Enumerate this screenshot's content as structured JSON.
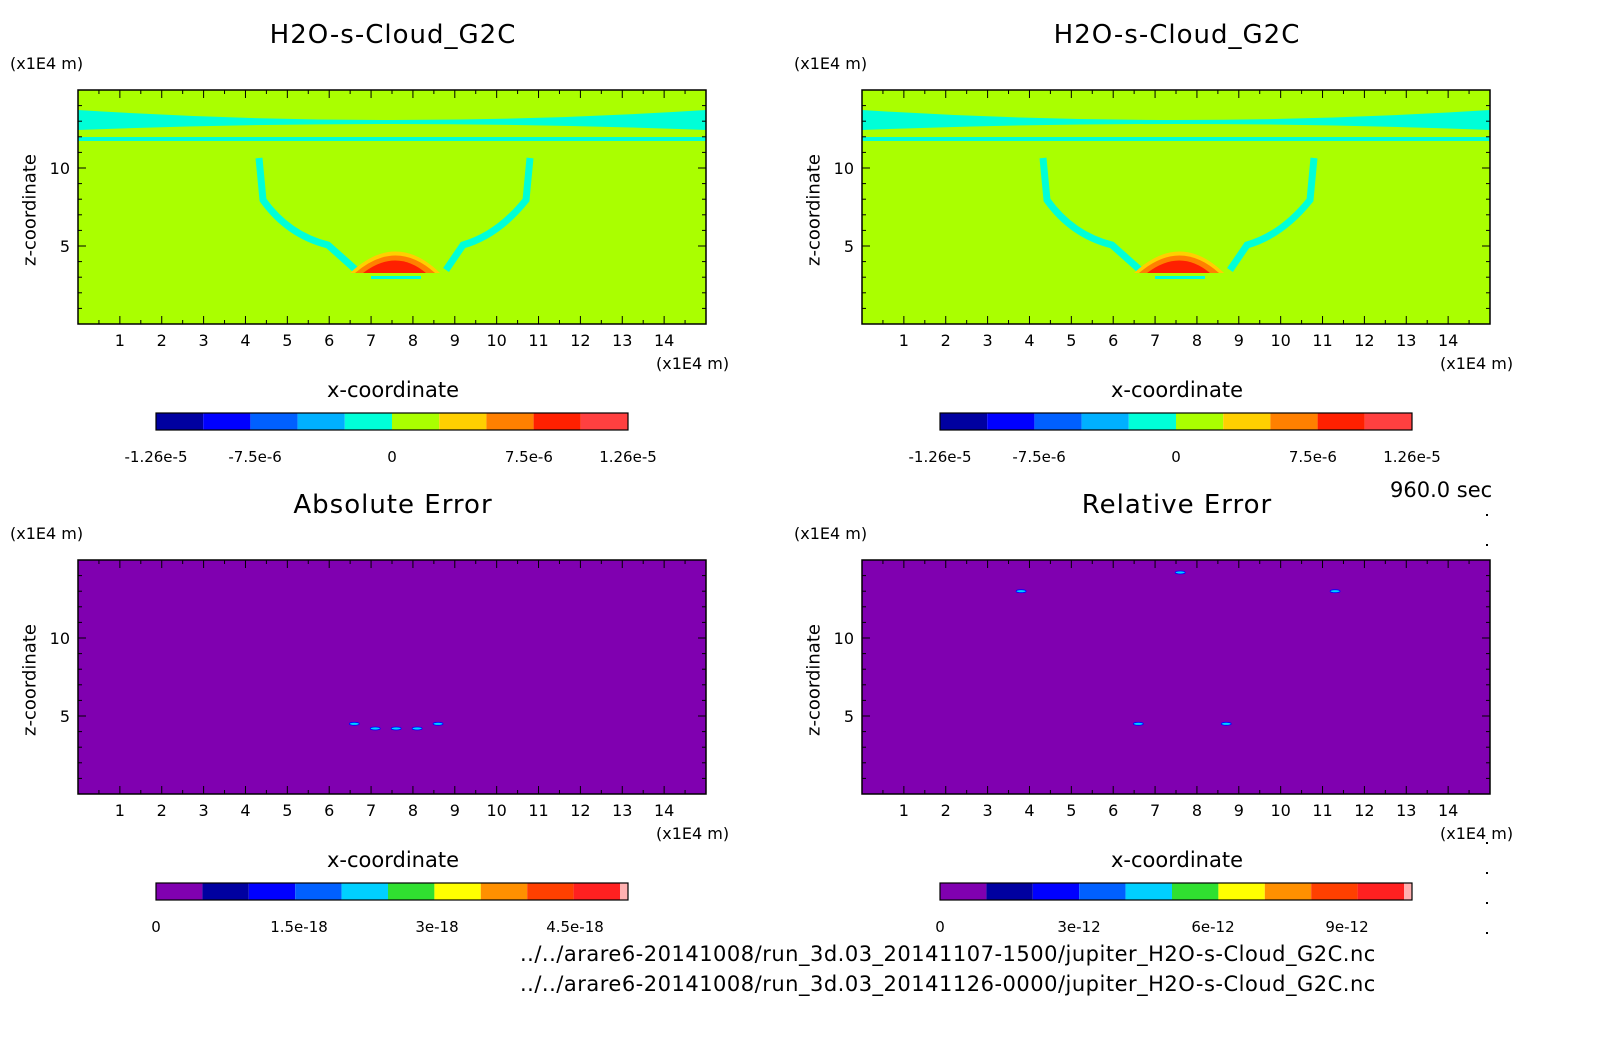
{
  "time_label": "960.0 sec",
  "files": [
    "../../arare6-20141008/run_3d.03_20141107-1500/jupiter_H2O-s-Cloud_G2C.nc",
    "../../arare6-20141008/run_3d.03_20141126-0000/jupiter_H2O-s-Cloud_G2C.nc"
  ],
  "panels": [
    {
      "title": "H2O-s-Cloud_G2C",
      "unit_y": "(x1E4 m)",
      "unit_x": "(x1E4 m)",
      "ylabel": "z-coordinate",
      "xlabel": "x-coordinate",
      "kind": "field",
      "colors": [
        "#0000a0",
        "#0000ff",
        "#0060ff",
        "#00b0ff",
        "#00ffd8",
        "#aaff00",
        "#ffd000",
        "#ff8000",
        "#ff2000",
        "#ff4040"
      ],
      "cb_ticks": [
        "-1.26e-5",
        "-7.5e-6",
        "0",
        "7.5e-6",
        "1.26e-5"
      ]
    },
    {
      "title": "H2O-s-Cloud_G2C",
      "unit_y": "(x1E4 m)",
      "unit_x": "(x1E4 m)",
      "ylabel": "z-coordinate",
      "xlabel": "x-coordinate",
      "kind": "field",
      "colors": [
        "#0000a0",
        "#0000ff",
        "#0060ff",
        "#00b0ff",
        "#00ffd8",
        "#aaff00",
        "#ffd000",
        "#ff8000",
        "#ff2000",
        "#ff4040"
      ],
      "cb_ticks": [
        "-1.26e-5",
        "-7.5e-6",
        "0",
        "7.5e-6",
        "1.26e-5"
      ]
    },
    {
      "title": "Absolute Error",
      "unit_y": "(x1E4 m)",
      "unit_x": "(x1E4 m)",
      "ylabel": "z-coordinate",
      "xlabel": "x-coordinate",
      "kind": "abs",
      "colors": [
        "#8000b0",
        "#0000a0",
        "#0000ff",
        "#0060ff",
        "#00d0ff",
        "#30e030",
        "#ffff00",
        "#ff9000",
        "#ff4000",
        "#ff2020",
        "#ffb0b0"
      ],
      "cb_ticks": [
        "0",
        "1.5e-18",
        "3e-18",
        "4.5e-18"
      ]
    },
    {
      "title": "Relative Error",
      "unit_y": "(x1E4 m)",
      "unit_x": "(x1E4 m)",
      "ylabel": "z-coordinate",
      "xlabel": "x-coordinate",
      "kind": "rel",
      "colors": [
        "#8000b0",
        "#0000a0",
        "#0000ff",
        "#0060ff",
        "#00d0ff",
        "#30e030",
        "#ffff00",
        "#ff9000",
        "#ff4000",
        "#ff2020",
        "#ffb0b0"
      ],
      "cb_ticks": [
        "0",
        "3e-12",
        "6e-12",
        "9e-12"
      ]
    }
  ],
  "chart_data": [
    {
      "type": "heatmap",
      "title": "H2O-s-Cloud_G2C",
      "xlabel": "x-coordinate",
      "ylabel": "z-coordinate",
      "x_ticks": [
        1,
        2,
        3,
        4,
        5,
        6,
        7,
        8,
        9,
        10,
        11,
        12,
        13,
        14
      ],
      "y_ticks": [
        5,
        10
      ],
      "xlim": [
        0,
        15
      ],
      "ylim": [
        0,
        15
      ],
      "colorbar_ticks": [
        -1.26e-05,
        -7.5e-06,
        0,
        7.5e-06,
        1.26e-05
      ]
    },
    {
      "type": "heatmap",
      "title": "H2O-s-Cloud_G2C",
      "xlabel": "x-coordinate",
      "ylabel": "z-coordinate",
      "x_ticks": [
        1,
        2,
        3,
        4,
        5,
        6,
        7,
        8,
        9,
        10,
        11,
        12,
        13,
        14
      ],
      "y_ticks": [
        5,
        10
      ],
      "xlim": [
        0,
        15
      ],
      "ylim": [
        0,
        15
      ],
      "colorbar_ticks": [
        -1.26e-05,
        -7.5e-06,
        0,
        7.5e-06,
        1.26e-05
      ]
    },
    {
      "type": "heatmap",
      "title": "Absolute Error",
      "xlabel": "x-coordinate",
      "ylabel": "z-coordinate",
      "x_ticks": [
        1,
        2,
        3,
        4,
        5,
        6,
        7,
        8,
        9,
        10,
        11,
        12,
        13,
        14
      ],
      "y_ticks": [
        5,
        10
      ],
      "xlim": [
        0,
        15
      ],
      "ylim": [
        0,
        15
      ],
      "colorbar_ticks": [
        0,
        1.5e-18,
        3e-18,
        4.5e-18
      ]
    },
    {
      "type": "heatmap",
      "title": "Relative Error",
      "xlabel": "x-coordinate",
      "ylabel": "z-coordinate",
      "x_ticks": [
        1,
        2,
        3,
        4,
        5,
        6,
        7,
        8,
        9,
        10,
        11,
        12,
        13,
        14
      ],
      "y_ticks": [
        5,
        10
      ],
      "xlim": [
        0,
        15
      ],
      "ylim": [
        0,
        15
      ],
      "colorbar_ticks": [
        0,
        3e-12,
        6e-12,
        9e-12
      ]
    }
  ]
}
